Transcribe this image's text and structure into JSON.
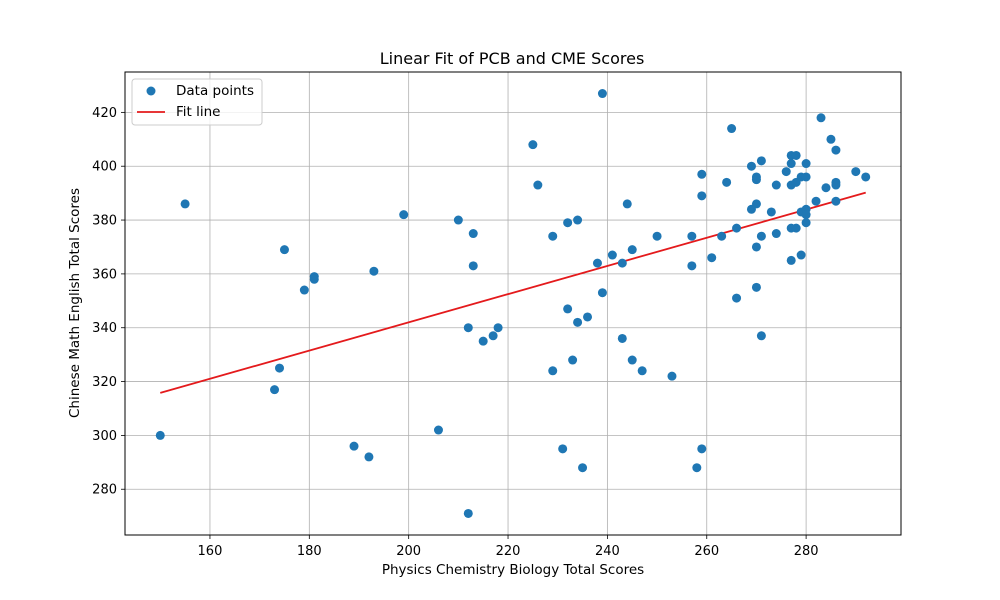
{
  "chart_data": {
    "type": "scatter",
    "title": "Linear Fit of PCB and CME Scores",
    "xlabel": "Physics Chemistry Biology Total Scores",
    "ylabel": "Chinese Math English Total Scores",
    "xlim": [
      142.9,
      299.1
    ],
    "ylim": [
      263.0,
      435.0
    ],
    "xticks": [
      160,
      180,
      200,
      220,
      240,
      260,
      280
    ],
    "yticks": [
      280,
      300,
      320,
      340,
      360,
      380,
      400,
      420
    ],
    "grid": true,
    "legend_position": "top-left",
    "series": [
      {
        "name": "Data points",
        "kind": "scatter",
        "color": "#1f77b4",
        "points": [
          [
            150,
            300
          ],
          [
            155,
            386
          ],
          [
            173,
            317
          ],
          [
            174,
            325
          ],
          [
            175,
            369
          ],
          [
            179,
            354
          ],
          [
            181,
            359
          ],
          [
            181,
            358
          ],
          [
            189,
            296
          ],
          [
            192,
            292
          ],
          [
            193,
            361
          ],
          [
            199,
            382
          ],
          [
            206,
            302
          ],
          [
            210,
            380
          ],
          [
            212,
            340
          ],
          [
            212,
            271
          ],
          [
            213,
            375
          ],
          [
            213,
            363
          ],
          [
            215,
            335
          ],
          [
            217,
            337
          ],
          [
            218,
            340
          ],
          [
            225,
            408
          ],
          [
            226,
            393
          ],
          [
            229,
            374
          ],
          [
            229,
            324
          ],
          [
            231,
            295
          ],
          [
            232,
            379
          ],
          [
            232,
            347
          ],
          [
            233,
            328
          ],
          [
            234,
            380
          ],
          [
            234,
            342
          ],
          [
            235,
            288
          ],
          [
            236,
            344
          ],
          [
            238,
            364
          ],
          [
            239,
            427
          ],
          [
            239,
            353
          ],
          [
            241,
            367
          ],
          [
            243,
            364
          ],
          [
            243,
            336
          ],
          [
            244,
            386
          ],
          [
            245,
            369
          ],
          [
            245,
            328
          ],
          [
            247,
            324
          ],
          [
            250,
            374
          ],
          [
            253,
            322
          ],
          [
            257,
            374
          ],
          [
            257,
            363
          ],
          [
            258,
            288
          ],
          [
            259,
            397
          ],
          [
            259,
            389
          ],
          [
            259,
            295
          ],
          [
            261,
            366
          ],
          [
            263,
            374
          ],
          [
            264,
            394
          ],
          [
            265,
            414
          ],
          [
            266,
            377
          ],
          [
            266,
            351
          ],
          [
            269,
            400
          ],
          [
            269,
            384
          ],
          [
            270,
            396
          ],
          [
            270,
            395
          ],
          [
            270,
            386
          ],
          [
            270,
            370
          ],
          [
            270,
            355
          ],
          [
            271,
            402
          ],
          [
            271,
            374
          ],
          [
            271,
            337
          ],
          [
            273,
            383
          ],
          [
            274,
            393
          ],
          [
            274,
            375
          ],
          [
            276,
            398
          ],
          [
            277,
            404
          ],
          [
            277,
            401
          ],
          [
            277,
            393
          ],
          [
            277,
            377
          ],
          [
            277,
            365
          ],
          [
            278,
            404
          ],
          [
            278,
            394
          ],
          [
            278,
            377
          ],
          [
            279,
            396
          ],
          [
            279,
            383
          ],
          [
            279,
            367
          ],
          [
            280,
            401
          ],
          [
            280,
            396
          ],
          [
            280,
            384
          ],
          [
            280,
            382
          ],
          [
            280,
            379
          ],
          [
            282,
            387
          ],
          [
            283,
            418
          ],
          [
            284,
            392
          ],
          [
            285,
            410
          ],
          [
            286,
            406
          ],
          [
            286,
            394
          ],
          [
            286,
            393
          ],
          [
            286,
            387
          ],
          [
            290,
            398
          ],
          [
            292,
            396
          ]
        ]
      },
      {
        "name": "Fit line",
        "kind": "line",
        "color": "#e41a1c",
        "points": [
          [
            150,
            315.8
          ],
          [
            292,
            390.2
          ]
        ]
      }
    ]
  }
}
